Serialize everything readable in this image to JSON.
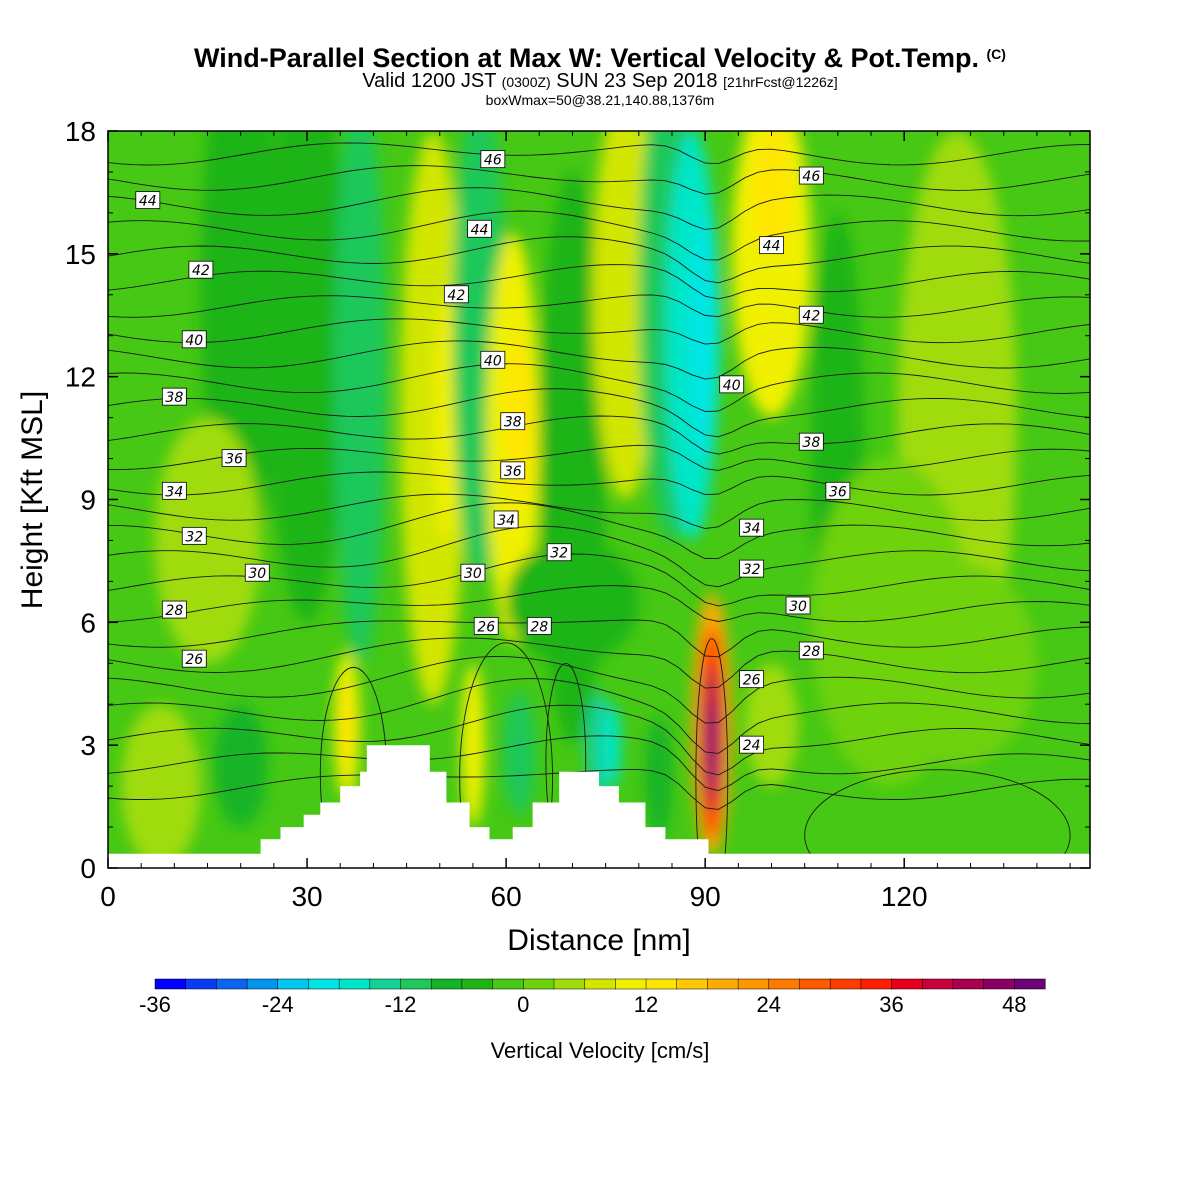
{
  "header": {
    "title": "Wind-Parallel Section at Max W: Vertical Velocity & Pot.Temp.",
    "title_mark": "(C)",
    "valid_main_a": "Valid 1200 JST",
    "valid_small_a": "(0300Z)",
    "valid_main_b": "SUN 23 Sep 2018",
    "valid_small_b": "[21hrFcst@1226z]",
    "box_info": "boxWmax=50@38.21,140.88,1376m"
  },
  "chart_data": {
    "type": "heatmap",
    "xlabel": "Distance [nm]",
    "ylabel": "Height [Kft MSL]",
    "xlim": [
      0,
      148
    ],
    "ylim": [
      0,
      18
    ],
    "xticks": [
      0,
      30,
      60,
      90,
      120
    ],
    "yticks": [
      0,
      3,
      6,
      9,
      12,
      15,
      18
    ],
    "colorbar": {
      "label": "Vertical Velocity [cm/s]",
      "ticks": [
        -36,
        -24,
        -12,
        0,
        12,
        24,
        36,
        48
      ],
      "levels": [
        -36,
        -33,
        -30,
        -27,
        -24,
        -21,
        -18,
        -15,
        -12,
        -9,
        -6,
        -3,
        0,
        3,
        6,
        9,
        12,
        15,
        18,
        21,
        24,
        27,
        30,
        33,
        36,
        39,
        42,
        45,
        48,
        51
      ],
      "colors": [
        "#0000ff",
        "#0a3cf5",
        "#0a64f0",
        "#0096f0",
        "#00c8f0",
        "#00e6e6",
        "#00e6c8",
        "#14d296",
        "#1ec85a",
        "#14b428",
        "#1eb414",
        "#46c814",
        "#6ed20a",
        "#a0dc0a",
        "#d2e600",
        "#f0f000",
        "#ffe600",
        "#ffc800",
        "#ffaa00",
        "#ff9600",
        "#ff7800",
        "#ff5a00",
        "#ff3c00",
        "#ff1e00",
        "#e6001e",
        "#c8003c",
        "#aa0050",
        "#8c0064",
        "#6e0078"
      ]
    },
    "theta_contour_labels": [
      {
        "value": "44",
        "x": 6,
        "z": 16.3
      },
      {
        "value": "42",
        "x": 14,
        "z": 14.6
      },
      {
        "value": "40",
        "x": 13,
        "z": 12.9
      },
      {
        "value": "38",
        "x": 10,
        "z": 11.5
      },
      {
        "value": "36",
        "x": 19,
        "z": 10.0
      },
      {
        "value": "34",
        "x": 10,
        "z": 9.2
      },
      {
        "value": "32",
        "x": 13,
        "z": 8.1
      },
      {
        "value": "30",
        "x": 22.5,
        "z": 7.2
      },
      {
        "value": "28",
        "x": 10,
        "z": 6.3
      },
      {
        "value": "26",
        "x": 13,
        "z": 5.1
      },
      {
        "value": "46",
        "x": 58,
        "z": 17.3
      },
      {
        "value": "44",
        "x": 56,
        "z": 15.6
      },
      {
        "value": "42",
        "x": 52.5,
        "z": 14.0
      },
      {
        "value": "40",
        "x": 58,
        "z": 12.4
      },
      {
        "value": "38",
        "x": 61,
        "z": 10.9
      },
      {
        "value": "36",
        "x": 61,
        "z": 9.7
      },
      {
        "value": "34",
        "x": 60,
        "z": 8.5
      },
      {
        "value": "32",
        "x": 68,
        "z": 7.7
      },
      {
        "value": "30",
        "x": 55,
        "z": 7.2
      },
      {
        "value": "28",
        "x": 65,
        "z": 5.9
      },
      {
        "value": "26",
        "x": 57,
        "z": 5.9
      },
      {
        "value": "46",
        "x": 106,
        "z": 16.9
      },
      {
        "value": "44",
        "x": 100,
        "z": 15.2
      },
      {
        "value": "42",
        "x": 106,
        "z": 13.5
      },
      {
        "value": "40",
        "x": 94,
        "z": 11.8
      },
      {
        "value": "38",
        "x": 106,
        "z": 10.4
      },
      {
        "value": "36",
        "x": 110,
        "z": 9.2
      },
      {
        "value": "34",
        "x": 97,
        "z": 8.3
      },
      {
        "value": "32",
        "x": 97,
        "z": 7.3
      },
      {
        "value": "30",
        "x": 104,
        "z": 6.4
      },
      {
        "value": "28",
        "x": 106,
        "z": 5.3
      },
      {
        "value": "26",
        "x": 97,
        "z": 4.6
      },
      {
        "value": "24",
        "x": 97,
        "z": 3.0
      }
    ],
    "terrain_profile": [
      [
        0,
        0.35
      ],
      [
        23,
        0.35
      ],
      [
        23,
        0.7
      ],
      [
        26,
        0.7
      ],
      [
        26,
        1.0
      ],
      [
        29.5,
        1.0
      ],
      [
        29.5,
        1.3
      ],
      [
        32,
        1.3
      ],
      [
        32,
        1.6
      ],
      [
        35,
        1.6
      ],
      [
        35,
        2.0
      ],
      [
        38,
        2.0
      ],
      [
        38,
        2.35
      ],
      [
        39,
        2.35
      ],
      [
        39,
        3.0
      ],
      [
        48.5,
        3.0
      ],
      [
        48.5,
        2.35
      ],
      [
        51,
        2.35
      ],
      [
        51,
        1.6
      ],
      [
        54.5,
        1.6
      ],
      [
        54.5,
        1.0
      ],
      [
        57.5,
        1.0
      ],
      [
        57.5,
        0.7
      ],
      [
        61,
        0.7
      ],
      [
        61,
        1.0
      ],
      [
        64,
        1.0
      ],
      [
        64,
        1.6
      ],
      [
        68,
        1.6
      ],
      [
        68,
        2.35
      ],
      [
        74,
        2.35
      ],
      [
        74,
        2.0
      ],
      [
        77,
        2.0
      ],
      [
        77,
        1.6
      ],
      [
        81,
        1.6
      ],
      [
        81,
        1.0
      ],
      [
        84,
        1.0
      ],
      [
        84,
        0.7
      ],
      [
        90.5,
        0.7
      ],
      [
        90.5,
        0.35
      ],
      [
        148,
        0.35
      ]
    ],
    "wmax_annotation": {
      "value_cm_s": 50,
      "x": 91,
      "z": 3.2
    }
  }
}
